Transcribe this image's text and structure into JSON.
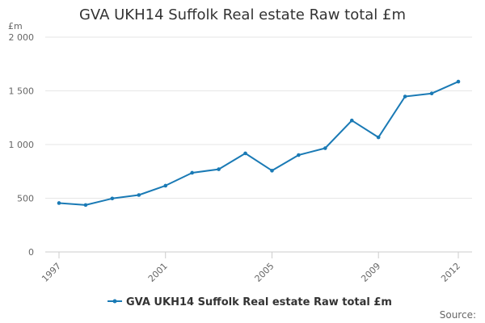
{
  "chart_data": {
    "type": "line",
    "title": "GVA UKH14 Suffolk Real estate Raw total £m",
    "ylabel": "£m",
    "xlabel": "",
    "ylim": [
      0,
      2000
    ],
    "xlim": [
      1997,
      2012
    ],
    "grid": true,
    "legend_position": "bottom",
    "y_ticks": [
      {
        "value": 0,
        "label": "0"
      },
      {
        "value": 500,
        "label": "500"
      },
      {
        "value": 1000,
        "label": "1 000"
      },
      {
        "value": 1500,
        "label": "1 500"
      },
      {
        "value": 2000,
        "label": "2 000"
      }
    ],
    "x_ticks": [
      {
        "value": 1997,
        "label": "1997"
      },
      {
        "value": 2001,
        "label": "2001"
      },
      {
        "value": 2005,
        "label": "2005"
      },
      {
        "value": 2009,
        "label": "2009"
      },
      {
        "value": 2012,
        "label": "2012"
      }
    ],
    "x": [
      1997,
      1998,
      1999,
      2000,
      2001,
      2002,
      2003,
      2004,
      2005,
      2006,
      2007,
      2008,
      2009,
      2010,
      2011,
      2012
    ],
    "series": [
      {
        "name": "GVA UKH14 Suffolk Real estate Raw total £m",
        "color": "#1a7ab5",
        "values": [
          455,
          437,
          498,
          530,
          617,
          737,
          770,
          918,
          757,
          902,
          966,
          1224,
          1067,
          1447,
          1476,
          1586
        ]
      }
    ]
  },
  "footer": {
    "source_label": "Source:"
  }
}
